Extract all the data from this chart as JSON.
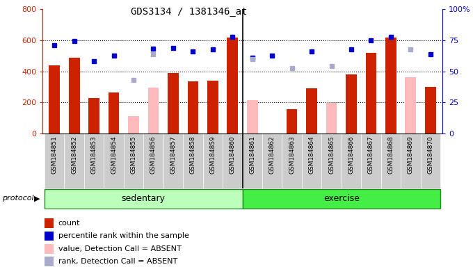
{
  "title": "GDS3134 / 1381346_at",
  "samples": [
    "GSM184851",
    "GSM184852",
    "GSM184853",
    "GSM184854",
    "GSM184855",
    "GSM184856",
    "GSM184857",
    "GSM184858",
    "GSM184859",
    "GSM184860",
    "GSM184861",
    "GSM184862",
    "GSM184863",
    "GSM184864",
    "GSM184865",
    "GSM184866",
    "GSM184867",
    "GSM184868",
    "GSM184869",
    "GSM184870"
  ],
  "count_values": [
    440,
    490,
    230,
    265,
    null,
    null,
    390,
    335,
    340,
    620,
    null,
    null,
    155,
    290,
    null,
    380,
    520,
    620,
    null,
    300
  ],
  "absent_value_bars": [
    null,
    null,
    null,
    null,
    110,
    295,
    null,
    null,
    null,
    null,
    215,
    null,
    null,
    null,
    195,
    null,
    null,
    null,
    365,
    null
  ],
  "rank_dots_blue": [
    570,
    595,
    465,
    500,
    null,
    545,
    550,
    530,
    540,
    625,
    490,
    500,
    null,
    530,
    null,
    540,
    600,
    625,
    null,
    510
  ],
  "rank_dots_light": [
    null,
    null,
    null,
    null,
    345,
    510,
    null,
    null,
    null,
    null,
    480,
    null,
    420,
    null,
    435,
    null,
    null,
    null,
    540,
    null
  ],
  "absent_mask": [
    false,
    false,
    false,
    false,
    true,
    true,
    false,
    false,
    false,
    false,
    true,
    true,
    false,
    false,
    true,
    false,
    false,
    false,
    true,
    false
  ],
  "sedentary_count": 10,
  "bar_color_present": "#cc2200",
  "bar_color_absent": "#ffbbbb",
  "dot_color_present": "#0000cc",
  "dot_color_absent": "#aaaacc",
  "group_color_sed": "#bbffbb",
  "group_color_ex": "#44ee44",
  "group_border": "#228822",
  "protocol_label": "protocol",
  "group_labels": [
    "sedentary",
    "exercise"
  ],
  "legend_items": [
    {
      "label": "count",
      "color": "#cc2200"
    },
    {
      "label": "percentile rank within the sample",
      "color": "#0000cc"
    },
    {
      "label": "value, Detection Call = ABSENT",
      "color": "#ffbbbb"
    },
    {
      "label": "rank, Detection Call = ABSENT",
      "color": "#aaaacc"
    }
  ]
}
